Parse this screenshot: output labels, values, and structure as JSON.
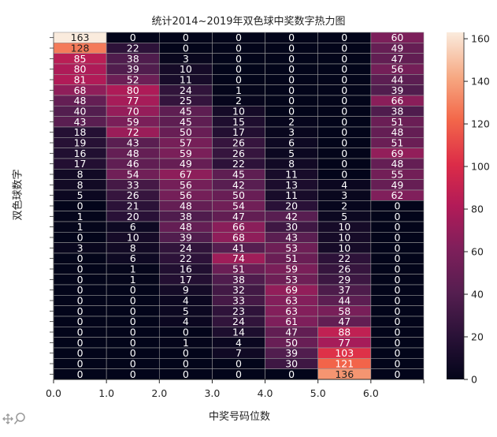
{
  "chart_data": {
    "type": "heatmap",
    "title": "统计2014~2019年双色球中奖数字热力图",
    "xlabel": "中奖号码位数",
    "ylabel": "双色球数字",
    "xticks": [
      "0.0",
      "1.0",
      "2.0",
      "3.0",
      "4.0",
      "5.0",
      "6.0"
    ],
    "colorbar_ticks": [
      0,
      20,
      40,
      60,
      80,
      100,
      120,
      140,
      160
    ],
    "vmin": 0,
    "vmax": 163,
    "colormap": "rocket",
    "rows": [
      [
        163,
        0,
        0,
        0,
        0,
        0,
        60
      ],
      [
        128,
        22,
        0,
        0,
        0,
        0,
        49
      ],
      [
        85,
        38,
        3,
        0,
        0,
        0,
        47
      ],
      [
        80,
        39,
        10,
        0,
        0,
        0,
        56
      ],
      [
        81,
        52,
        11,
        0,
        0,
        0,
        44
      ],
      [
        68,
        80,
        24,
        1,
        0,
        0,
        39
      ],
      [
        48,
        77,
        25,
        2,
        0,
        0,
        66
      ],
      [
        40,
        70,
        45,
        10,
        0,
        0,
        38
      ],
      [
        43,
        59,
        45,
        15,
        2,
        0,
        51
      ],
      [
        18,
        72,
        50,
        17,
        3,
        0,
        48
      ],
      [
        19,
        43,
        57,
        26,
        6,
        0,
        51
      ],
      [
        16,
        48,
        59,
        26,
        5,
        0,
        69
      ],
      [
        17,
        46,
        49,
        22,
        8,
        0,
        48
      ],
      [
        8,
        54,
        67,
        45,
        11,
        0,
        55
      ],
      [
        8,
        33,
        56,
        42,
        13,
        4,
        49
      ],
      [
        5,
        26,
        56,
        50,
        11,
        3,
        62
      ],
      [
        0,
        21,
        48,
        54,
        20,
        2,
        0
      ],
      [
        1,
        20,
        38,
        47,
        42,
        5,
        0
      ],
      [
        1,
        6,
        48,
        66,
        30,
        10,
        0
      ],
      [
        0,
        10,
        39,
        68,
        43,
        10,
        0
      ],
      [
        3,
        8,
        24,
        41,
        53,
        10,
        0
      ],
      [
        0,
        6,
        22,
        74,
        51,
        22,
        0
      ],
      [
        0,
        1,
        16,
        51,
        59,
        26,
        0
      ],
      [
        0,
        1,
        17,
        38,
        53,
        29,
        0
      ],
      [
        0,
        0,
        9,
        32,
        69,
        37,
        0
      ],
      [
        0,
        0,
        4,
        33,
        63,
        44,
        0
      ],
      [
        0,
        0,
        5,
        23,
        63,
        58,
        0
      ],
      [
        0,
        0,
        4,
        24,
        61,
        47,
        0
      ],
      [
        0,
        0,
        0,
        14,
        47,
        88,
        0
      ],
      [
        0,
        0,
        1,
        4,
        50,
        77,
        0
      ],
      [
        0,
        0,
        0,
        7,
        39,
        103,
        0
      ],
      [
        0,
        0,
        0,
        0,
        30,
        121,
        0
      ],
      [
        0,
        0,
        0,
        0,
        0,
        136,
        0
      ]
    ]
  },
  "toolbar": {
    "icons": [
      "pan-icon",
      "zoom-icon"
    ]
  }
}
